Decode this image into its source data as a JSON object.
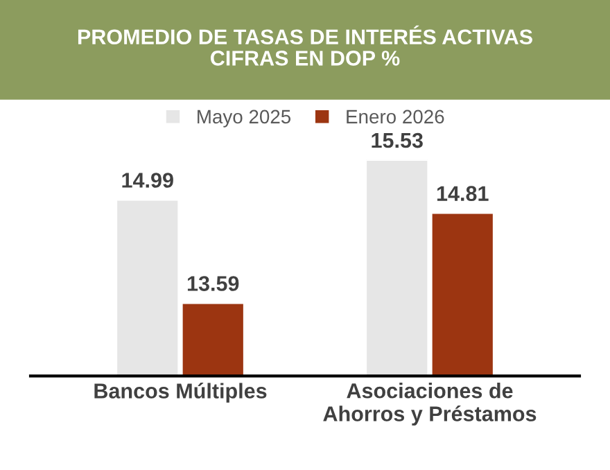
{
  "chart_data": {
    "type": "bar",
    "title": "PROMEDIO DE TASAS DE INTERÉS ACTIVAS\nCIFRAS EN DOP %",
    "categories": [
      "Bancos Múltiples",
      "Asociaciones de\nAhorros y Préstamos"
    ],
    "series": [
      {
        "name": "Mayo 2025",
        "color": "#e6e6e6",
        "values": [
          14.99,
          15.53
        ]
      },
      {
        "name": "Enero 2026",
        "color": "#9c3511",
        "values": [
          13.59,
          14.81
        ]
      }
    ],
    "ylim": [
      12.6,
      15.53
    ],
    "tick_labels": "x",
    "data_labels": true,
    "legend": "top",
    "grid": false
  }
}
